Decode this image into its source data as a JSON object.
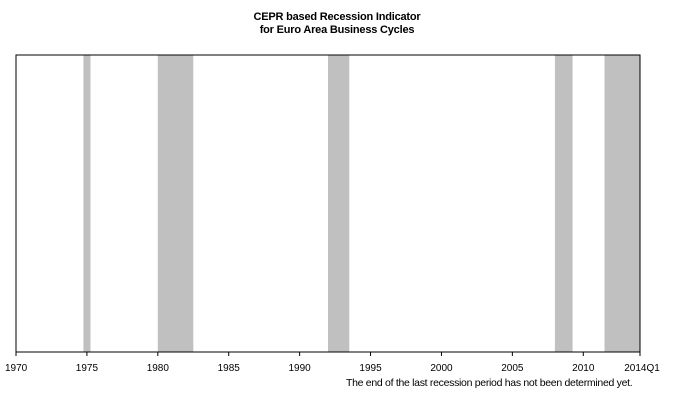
{
  "chart_data": {
    "type": "area",
    "title_line1": "CEPR based Recession Indicator",
    "title_line2": "for Euro Area Business Cycles",
    "x_tick_labels": [
      "1970",
      "1975",
      "1980",
      "1985",
      "1990",
      "1995",
      "2000",
      "2005",
      "2010",
      "2014Q1"
    ],
    "x_ticks": [
      1970,
      1975,
      1980,
      1985,
      1990,
      1995,
      2000,
      2005,
      2010,
      2014.0
    ],
    "xlim": [
      1970,
      2014.0
    ],
    "ylim": [
      0,
      1
    ],
    "recession_periods": [
      {
        "start": 1974.75,
        "end": 1975.25
      },
      {
        "start": 1980.0,
        "end": 1982.5
      },
      {
        "start": 1992.0,
        "end": 1993.5
      },
      {
        "start": 2008.0,
        "end": 2009.25
      },
      {
        "start": 2011.5,
        "end": 2014.0
      }
    ],
    "note": "The end of the last recession period has not been determined yet.",
    "colors": {
      "recession": "#c0c0c0",
      "frame": "#000000",
      "background": "#ffffff"
    }
  }
}
